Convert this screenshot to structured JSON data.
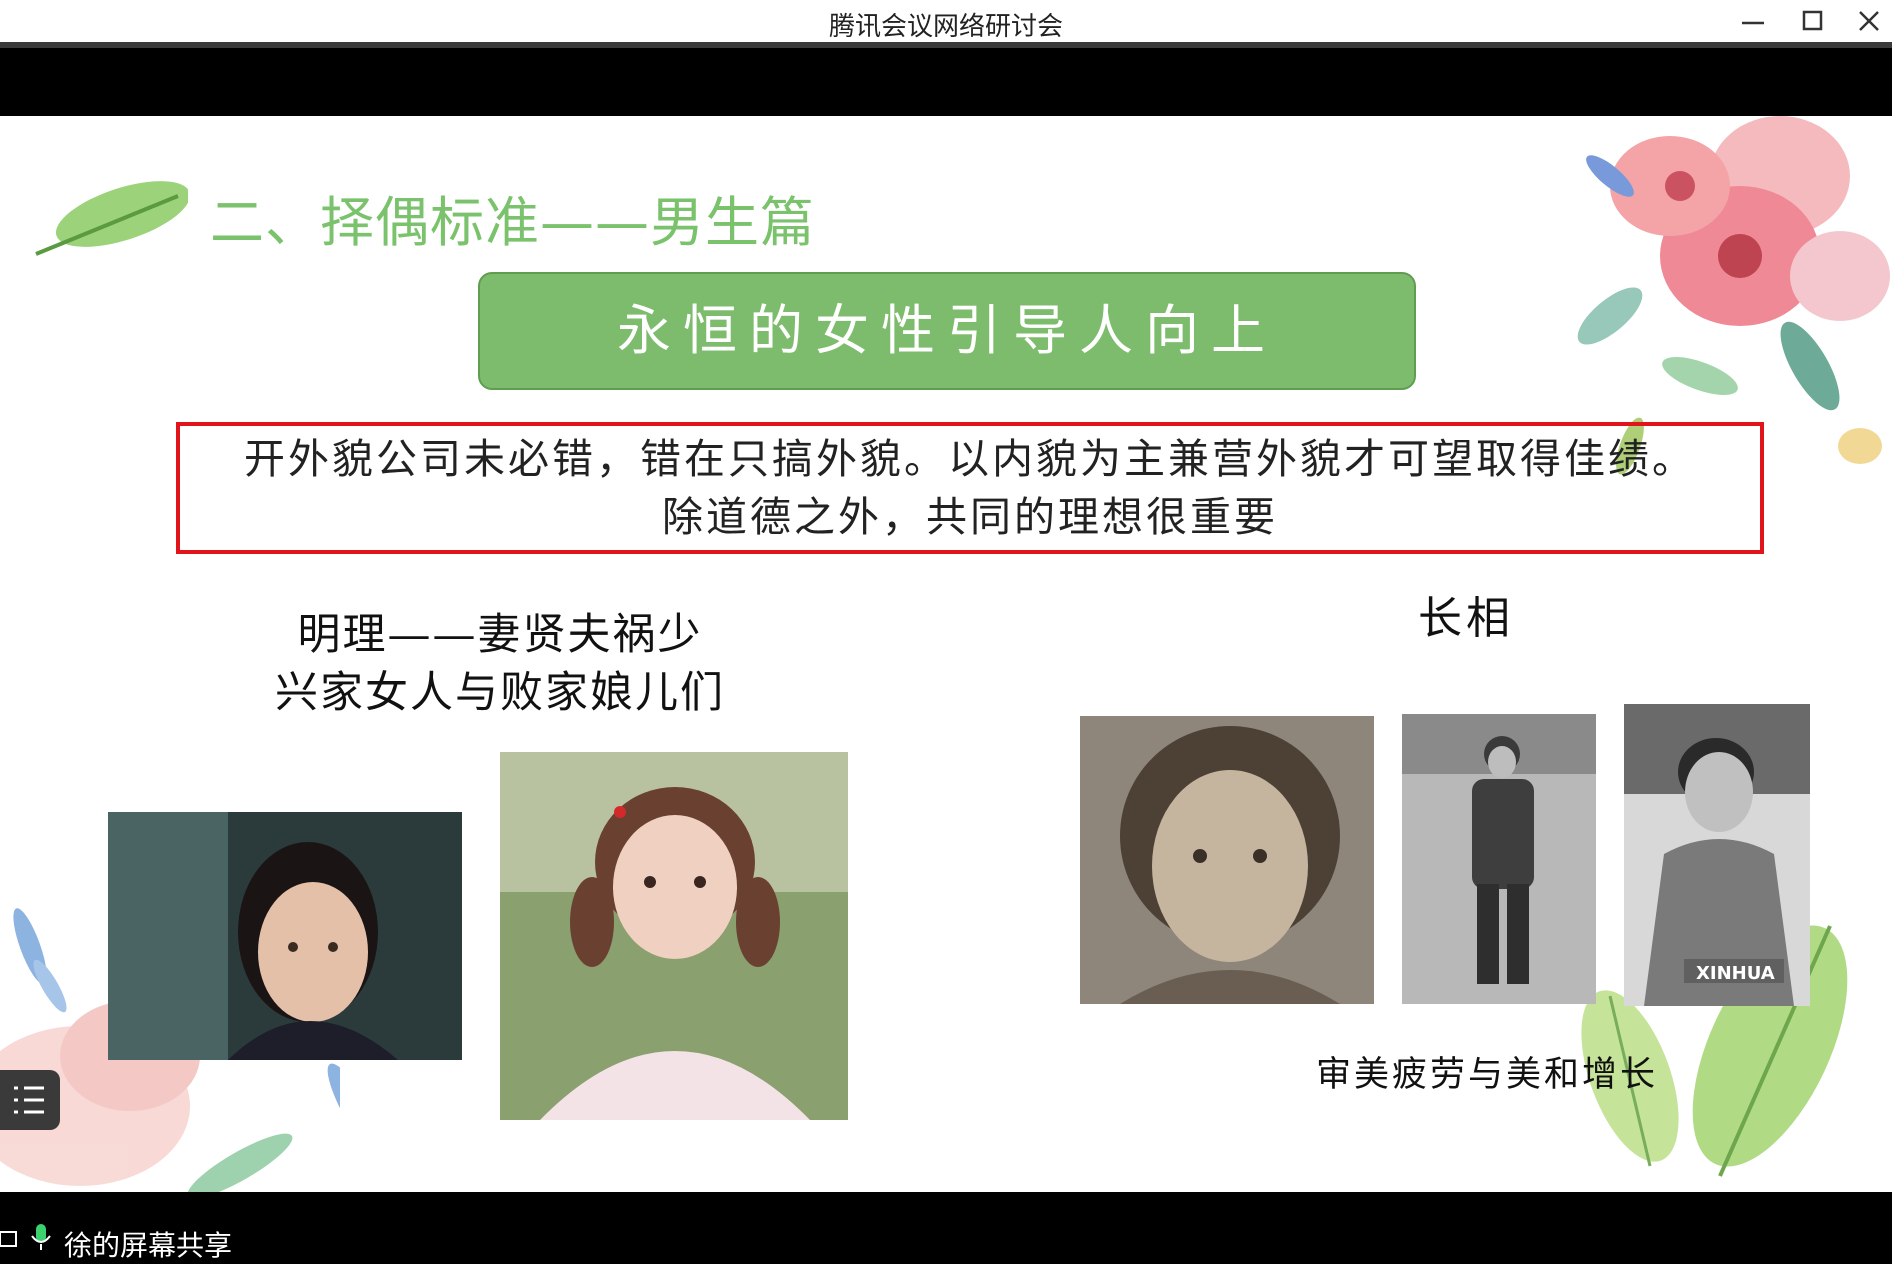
{
  "window": {
    "title": "腾讯会议网络研讨会"
  },
  "slide": {
    "heading": "二、择偶标准——男生篇",
    "banner": "永恒的女性引导人向上",
    "quote_lines": [
      "开外貌公司未必错，错在只搞外貌。以内貌为主兼营外貌才可望取得佳绩。",
      "除道德之外，共同的理想很重要"
    ],
    "left_caption_lines": [
      "明理——妻贤夫祸少",
      "兴家女人与败家娘儿们"
    ],
    "looks_label": "长相",
    "right_caption": "审美疲劳与美和增长",
    "photo_watermark": "XINHUA"
  },
  "footer": {
    "share_label": "徐的屏幕共享"
  },
  "colors": {
    "heading_green": "#7ac26b",
    "banner_green": "#7ebc6d",
    "quote_border_red": "#e0141a"
  }
}
